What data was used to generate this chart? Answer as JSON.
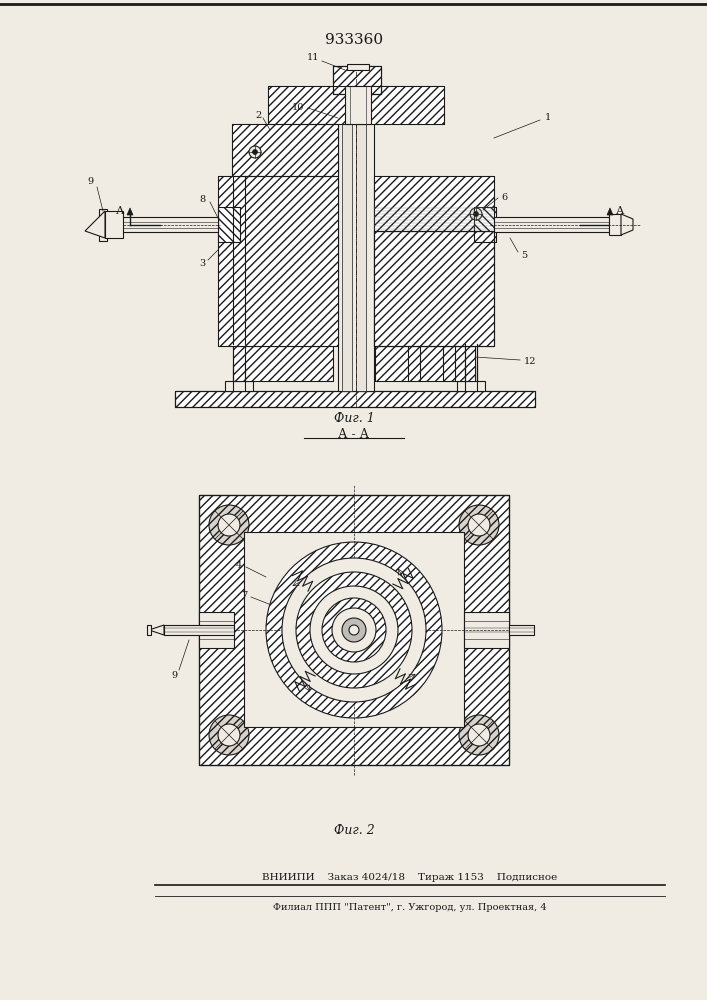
{
  "title": "933360",
  "fig1_label": "Фиг. 1",
  "fig2_label": "Фиг. 2",
  "section_label": "А - А",
  "bottom_line1": "ВНИИПИ    Заказ 4024/18    Тираж 1153    Подписное",
  "bottom_line2": "Филиал ППП \"Патент\", г. Ужгород, ул. Проектная, 4",
  "bg_color": "#f0ece4",
  "line_color": "#1a1a1a"
}
